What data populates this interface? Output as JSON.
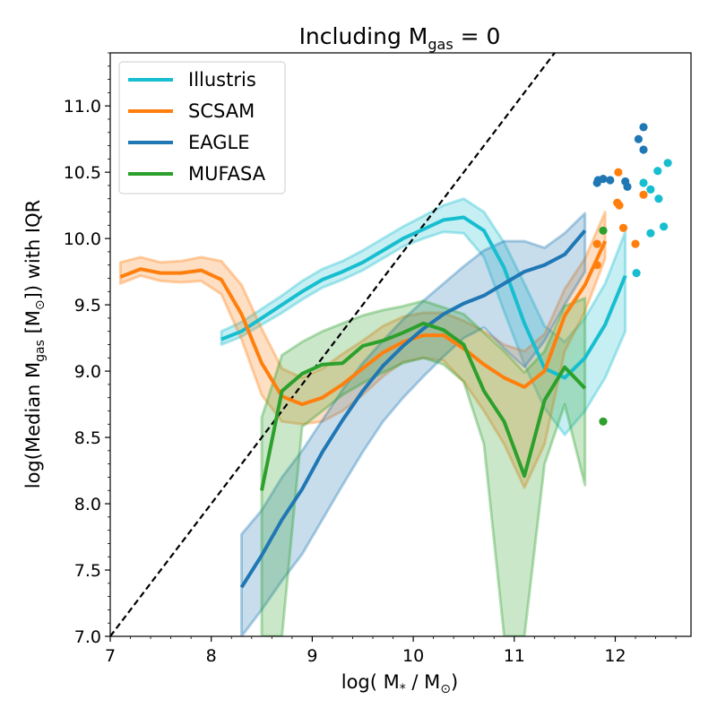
{
  "chart_data": {
    "type": "line",
    "title": "Including M",
    "title_sub": "gas",
    "title_tail": " = 0",
    "xlabel_parts": {
      "pre": "log( M",
      "sub1": "*",
      "mid": " / M",
      "sub2": "⊙",
      "post": ")"
    },
    "ylabel_parts": {
      "pre": "log(Median M",
      "sub1": "gas",
      "mid": " [M",
      "sub2": "⊙",
      "post": "]) with IQR"
    },
    "xlim": [
      7.0,
      12.75
    ],
    "ylim": [
      7.0,
      11.4
    ],
    "x_ticks": [
      7,
      8,
      9,
      10,
      11,
      12
    ],
    "x_tick_labels": [
      "7",
      "8",
      "9",
      "10",
      "11",
      "12"
    ],
    "y_ticks": [
      7.0,
      7.5,
      8.0,
      8.5,
      9.0,
      9.5,
      10.0,
      10.5,
      11.0
    ],
    "y_tick_labels": [
      "7.0",
      "7.5",
      "8.0",
      "8.5",
      "9.0",
      "9.5",
      "10.0",
      "10.5",
      "11.0"
    ],
    "grid": false,
    "legend_position": "top-left",
    "reference_line": {
      "style": "dashed",
      "color": "#000000",
      "points": [
        [
          7.0,
          7.0
        ],
        [
          12.75,
          12.75
        ]
      ]
    },
    "series": [
      {
        "name": "Illustris",
        "color": "#17becf",
        "x": [
          8.1,
          8.3,
          8.5,
          8.7,
          8.9,
          9.1,
          9.3,
          9.5,
          9.7,
          9.9,
          10.1,
          10.3,
          10.5,
          10.7,
          10.9,
          11.1,
          11.3,
          11.5,
          11.7,
          11.9,
          12.1
        ],
        "y": [
          9.24,
          9.3,
          9.4,
          9.5,
          9.6,
          9.69,
          9.75,
          9.82,
          9.91,
          10.0,
          10.07,
          10.14,
          10.16,
          10.06,
          9.78,
          9.36,
          9.02,
          8.95,
          9.1,
          9.35,
          9.72
        ],
        "q1": [
          9.2,
          9.26,
          9.35,
          9.44,
          9.54,
          9.63,
          9.69,
          9.76,
          9.85,
          9.94,
          10.0,
          10.05,
          10.04,
          9.86,
          9.45,
          9.05,
          8.72,
          8.52,
          8.7,
          8.95,
          9.3
        ],
        "q3": [
          9.3,
          9.37,
          9.47,
          9.57,
          9.68,
          9.77,
          9.83,
          9.91,
          10.0,
          10.09,
          10.17,
          10.25,
          10.3,
          10.2,
          9.97,
          9.66,
          9.34,
          9.22,
          9.4,
          9.66,
          10.05
        ]
      },
      {
        "name": "SCSAM",
        "color": "#ff7f0e",
        "x": [
          7.1,
          7.3,
          7.5,
          7.7,
          7.9,
          8.1,
          8.3,
          8.5,
          8.7,
          8.9,
          9.1,
          9.3,
          9.5,
          9.7,
          9.9,
          10.1,
          10.3,
          10.5,
          10.7,
          10.9,
          11.1,
          11.3,
          11.5,
          11.7,
          11.9
        ],
        "y": [
          9.71,
          9.77,
          9.74,
          9.74,
          9.76,
          9.69,
          9.43,
          9.06,
          8.81,
          8.75,
          8.8,
          8.9,
          9.02,
          9.14,
          9.22,
          9.27,
          9.27,
          9.17,
          9.05,
          8.95,
          8.88,
          9.0,
          9.42,
          9.65,
          9.98
        ],
        "q1": [
          9.66,
          9.72,
          9.68,
          9.67,
          9.68,
          9.58,
          9.24,
          8.82,
          8.62,
          8.6,
          8.62,
          8.7,
          8.82,
          8.96,
          9.07,
          9.1,
          9.08,
          8.92,
          8.7,
          8.45,
          8.12,
          8.45,
          9.15,
          9.45,
          9.85
        ],
        "q3": [
          9.82,
          9.86,
          9.82,
          9.83,
          9.86,
          9.83,
          9.65,
          9.32,
          9.02,
          8.95,
          9.02,
          9.13,
          9.23,
          9.34,
          9.41,
          9.44,
          9.44,
          9.38,
          9.3,
          9.2,
          9.15,
          9.28,
          9.62,
          9.85,
          10.2
        ]
      },
      {
        "name": "EAGLE",
        "color": "#1f77b4",
        "x": [
          8.3,
          8.5,
          8.7,
          8.9,
          9.1,
          9.3,
          9.5,
          9.7,
          9.9,
          10.1,
          10.3,
          10.5,
          10.7,
          10.9,
          11.1,
          11.3,
          11.5,
          11.7
        ],
        "y": [
          7.37,
          7.61,
          7.88,
          8.11,
          8.39,
          8.63,
          8.85,
          9.04,
          9.19,
          9.32,
          9.43,
          9.51,
          9.57,
          9.66,
          9.75,
          9.8,
          9.88,
          10.06
        ],
        "q1": [
          7.0,
          7.2,
          7.42,
          7.62,
          7.88,
          8.14,
          8.39,
          8.62,
          8.8,
          8.96,
          9.11,
          9.25,
          9.33,
          9.17,
          9.03,
          9.23,
          9.5,
          9.75
        ],
        "q3": [
          7.77,
          7.95,
          8.2,
          8.4,
          8.63,
          8.86,
          9.06,
          9.23,
          9.39,
          9.53,
          9.66,
          9.79,
          9.91,
          9.98,
          9.98,
          9.93,
          10.04,
          10.19
        ]
      },
      {
        "name": "MUFASA",
        "color": "#2ca02c",
        "x": [
          8.5,
          8.7,
          8.9,
          9.1,
          9.3,
          9.5,
          9.7,
          9.9,
          10.1,
          10.3,
          10.5,
          10.7,
          10.9,
          11.1,
          11.3,
          11.5,
          11.7
        ],
        "y": [
          8.1,
          8.85,
          8.98,
          9.05,
          9.06,
          9.19,
          9.23,
          9.29,
          9.36,
          9.31,
          9.2,
          8.85,
          8.62,
          8.21,
          8.78,
          9.03,
          8.87
        ],
        "q1": [
          7.0,
          7.0,
          8.58,
          8.7,
          8.82,
          8.91,
          8.99,
          9.06,
          9.1,
          9.05,
          8.92,
          8.45,
          7.0,
          7.0,
          8.3,
          8.75,
          8.14
        ],
        "q3": [
          8.65,
          9.12,
          9.22,
          9.3,
          9.36,
          9.42,
          9.46,
          9.49,
          9.53,
          9.48,
          9.43,
          9.29,
          9.15,
          8.99,
          9.15,
          9.49,
          9.55
        ]
      }
    ],
    "scatter_points": [
      {
        "series": "Illustris",
        "color": "#17becf",
        "points": [
          [
            12.28,
            10.42
          ],
          [
            12.35,
            10.37
          ],
          [
            12.42,
            10.51
          ],
          [
            12.52,
            10.57
          ],
          [
            12.43,
            10.3
          ],
          [
            12.48,
            10.09
          ],
          [
            12.35,
            10.04
          ],
          [
            12.21,
            9.74
          ]
        ]
      },
      {
        "series": "SCSAM",
        "color": "#ff7f0e",
        "points": [
          [
            12.03,
            10.5
          ],
          [
            12.02,
            10.27
          ],
          [
            12.04,
            10.25
          ],
          [
            12.08,
            10.08
          ],
          [
            12.28,
            10.33
          ],
          [
            12.2,
            9.96
          ],
          [
            11.82,
            9.96
          ],
          [
            11.82,
            9.8
          ]
        ]
      },
      {
        "series": "EAGLE",
        "color": "#1f77b4",
        "points": [
          [
            11.82,
            10.42
          ],
          [
            11.83,
            10.44
          ],
          [
            11.88,
            10.45
          ],
          [
            11.95,
            10.44
          ],
          [
            12.1,
            10.43
          ],
          [
            12.12,
            10.39
          ],
          [
            12.23,
            10.75
          ],
          [
            12.28,
            10.84
          ],
          [
            12.28,
            10.67
          ]
        ]
      },
      {
        "series": "MUFASA",
        "color": "#2ca02c",
        "points": [
          [
            11.88,
            10.06
          ],
          [
            11.88,
            8.62
          ]
        ]
      }
    ]
  }
}
